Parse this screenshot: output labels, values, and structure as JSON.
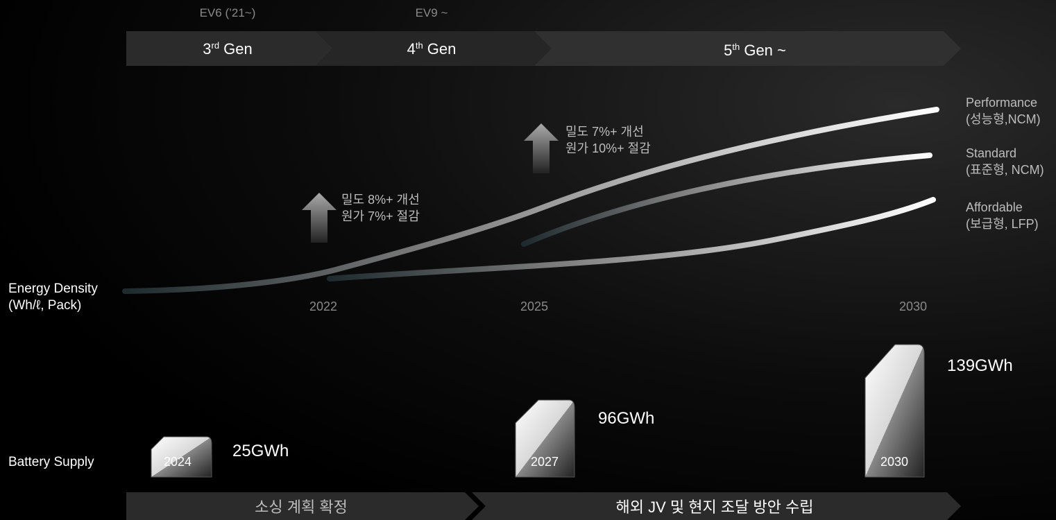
{
  "generations": [
    {
      "model": "EV6 (’21~)",
      "number": "3",
      "suffix": "rd",
      "text": " Gen"
    },
    {
      "model": "EV9 ~",
      "number": "4",
      "suffix": "th",
      "text": " Gen"
    },
    {
      "number": "5",
      "suffix": "th",
      "text": " Gen ~"
    }
  ],
  "lines": [
    {
      "name": "Performance",
      "type": "(성능형,NCM)"
    },
    {
      "name": "Standard",
      "type": "(표준형, NCM)"
    },
    {
      "name": "Affordable",
      "type": "(보급형, LFP)"
    }
  ],
  "improvements": [
    {
      "density": "밀도 8%+ 개선",
      "cost": "원가 7%+ 절감"
    },
    {
      "density": "밀도 7%+ 개선",
      "cost": "원가 10%+ 절감"
    }
  ],
  "energy_density_label": [
    "Energy Density",
    "(Wh/ℓ, Pack)"
  ],
  "years": [
    "2022",
    "2025",
    "2030"
  ],
  "battery_supply_label": "Battery Supply",
  "supply": [
    {
      "year": "2024",
      "amount": "25GWh"
    },
    {
      "year": "2027",
      "amount": "96GWh"
    },
    {
      "year": "2030",
      "amount": "139GWh"
    }
  ],
  "phases": [
    "소싱 계획 확정",
    "해외 JV 및 현지 조달 방안 수립"
  ]
}
